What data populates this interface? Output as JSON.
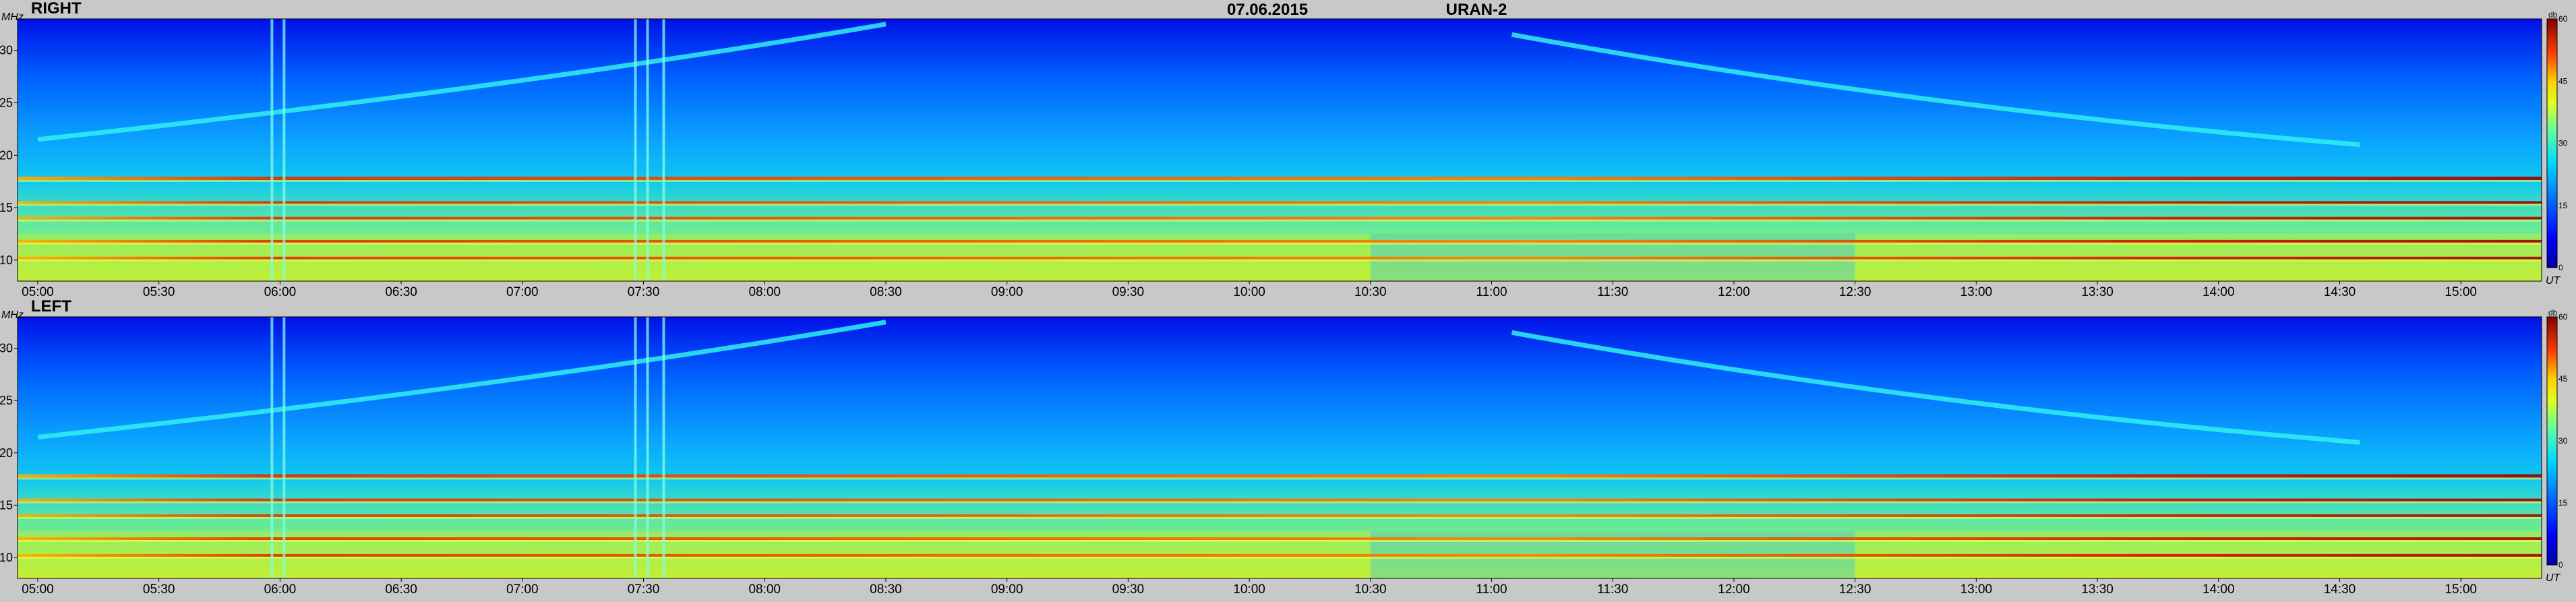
{
  "header": {
    "date": "07.06.2015",
    "instrument": "URAN-2"
  },
  "colors": {
    "background": "#c8c8c8",
    "colormap": [
      "#0000a0",
      "#0000ff",
      "#0080ff",
      "#00d0ff",
      "#40ffc0",
      "#c0ff40",
      "#ffff00",
      "#ff8000",
      "#ff0000",
      "#800000"
    ]
  },
  "chart_data": [
    {
      "type": "heatmap",
      "title": "RIGHT",
      "ylabel": "MHz",
      "xlabel": "UT",
      "x_unit": "UT",
      "x_range": [
        "04:55",
        "15:20"
      ],
      "x_ticks": [
        "05:00",
        "05:30",
        "06:00",
        "06:30",
        "07:00",
        "07:30",
        "08:00",
        "08:30",
        "09:00",
        "09:30",
        "10:00",
        "10:30",
        "11:00",
        "11:30",
        "12:00",
        "12:30",
        "13:00",
        "13:30",
        "14:00",
        "14:30",
        "15:00"
      ],
      "ylim": [
        8,
        33
      ],
      "y_ticks": [
        10,
        15,
        20,
        25,
        30
      ],
      "colorbar": {
        "label": "db",
        "range": [
          0,
          60
        ],
        "ticks": [
          0,
          15,
          30,
          45,
          60
        ]
      },
      "grid": false,
      "features": {
        "rising_drift": {
          "start_time": "05:00",
          "start_freq": 21.5,
          "end_time": "08:30",
          "end_freq": 32.5
        },
        "falling_drift": {
          "start_time": "11:05",
          "start_freq": 31.5,
          "end_time": "14:35",
          "end_freq": 21.0
        },
        "hot_lines_mhz": [
          17.8,
          15.5,
          14.0,
          11.8,
          10.2
        ],
        "vertical_bursts": [
          "05:58",
          "06:01",
          "07:28",
          "07:31",
          "07:35"
        ]
      }
    },
    {
      "type": "heatmap",
      "title": "LEFT",
      "ylabel": "MHz",
      "xlabel": "UT",
      "x_unit": "UT",
      "x_range": [
        "04:55",
        "15:20"
      ],
      "x_ticks": [
        "05:00",
        "05:30",
        "06:00",
        "06:30",
        "07:00",
        "07:30",
        "08:00",
        "08:30",
        "09:00",
        "09:30",
        "10:00",
        "10:30",
        "11:00",
        "11:30",
        "12:00",
        "12:30",
        "13:00",
        "13:30",
        "14:00",
        "14:30",
        "15:00"
      ],
      "ylim": [
        8,
        33
      ],
      "y_ticks": [
        10,
        15,
        20,
        25,
        30
      ],
      "colorbar": {
        "label": "db",
        "range": [
          0,
          60
        ],
        "ticks": [
          0,
          15,
          30,
          45,
          60
        ]
      },
      "grid": false,
      "features": {
        "rising_drift": {
          "start_time": "05:00",
          "start_freq": 21.5,
          "end_time": "08:30",
          "end_freq": 32.5
        },
        "falling_drift": {
          "start_time": "11:05",
          "start_freq": 31.5,
          "end_time": "14:35",
          "end_freq": 21.0
        },
        "hot_lines_mhz": [
          17.8,
          15.5,
          14.0,
          11.8,
          10.2
        ],
        "vertical_bursts": [
          "05:58",
          "06:01",
          "07:28",
          "07:31",
          "07:35"
        ]
      }
    }
  ]
}
